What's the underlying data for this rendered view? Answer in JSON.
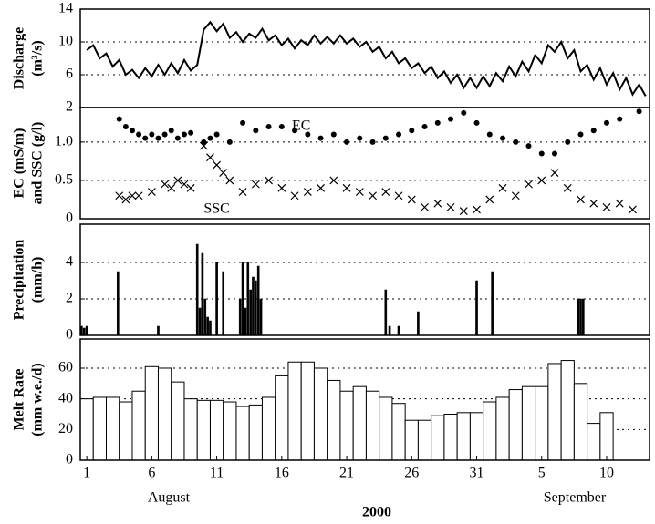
{
  "chart_data": [
    {
      "type": "line",
      "ylabel": [
        "Discharge",
        "(m³/s)"
      ],
      "ylim": [
        2,
        14
      ],
      "yticks": [
        2,
        6,
        10,
        14
      ],
      "xlim": [
        0.5,
        44.3
      ],
      "color": "#000",
      "series": [
        {
          "name": "Discharge",
          "x": [
            1,
            1.5,
            2,
            2.5,
            3,
            3.5,
            4,
            4.5,
            5,
            5.5,
            6,
            6.5,
            7,
            7.5,
            8,
            8.5,
            9,
            9.5,
            10,
            10.5,
            11,
            11.5,
            12,
            12.5,
            13,
            13.5,
            14,
            14.5,
            15,
            15.5,
            16,
            16.5,
            17,
            17.5,
            18,
            18.5,
            19,
            19.5,
            20,
            20.5,
            21,
            21.5,
            22,
            22.5,
            23,
            23.5,
            24,
            24.5,
            25,
            25.5,
            26,
            26.5,
            27,
            27.5,
            28,
            28.5,
            29,
            29.5,
            30,
            30.5,
            31,
            31.5,
            32,
            32.5,
            33,
            33.5,
            34,
            34.5,
            35,
            35.5,
            36,
            36.5,
            37,
            37.5,
            38,
            38.5,
            39,
            39.5,
            40,
            40.5,
            41,
            41.5,
            42,
            42.5,
            43,
            43.5,
            44
          ],
          "values": [
            9.0,
            9.6,
            8.0,
            8.6,
            7.0,
            7.8,
            6.0,
            6.6,
            5.6,
            6.8,
            5.8,
            7.2,
            6.0,
            7.4,
            6.2,
            7.8,
            6.5,
            7.2,
            11.5,
            12.4,
            11.3,
            12.2,
            10.5,
            11.2,
            10.0,
            11.0,
            10.5,
            11.6,
            10.2,
            10.8,
            9.6,
            10.4,
            9.2,
            10.2,
            9.6,
            10.8,
            9.8,
            10.6,
            9.8,
            10.8,
            9.8,
            10.4,
            9.4,
            10.0,
            8.8,
            9.4,
            8.0,
            8.8,
            7.4,
            8.0,
            6.8,
            7.4,
            6.2,
            7.0,
            5.6,
            6.4,
            5.0,
            6.0,
            4.4,
            5.6,
            4.4,
            5.8,
            4.6,
            6.2,
            5.2,
            7.0,
            5.8,
            7.6,
            6.4,
            8.4,
            7.4,
            9.6,
            8.8,
            10.0,
            8.0,
            9.0,
            6.4,
            7.2,
            5.4,
            6.8,
            4.8,
            6.2,
            4.2,
            5.6,
            3.6,
            4.8,
            3.4
          ]
        }
      ]
    },
    {
      "type": "scatter",
      "ylabel": [
        "EC (mS/m)",
        "and SSC (g/l)"
      ],
      "ylim": [
        0,
        1.45
      ],
      "yticks": [
        0,
        0.5,
        {
          "value": 1,
          "label": "1.0"
        }
      ],
      "xlim": [
        0.5,
        44.3
      ],
      "series": [
        {
          "name": "EC",
          "marker": "circle",
          "color": "#000",
          "x": [
            3.5,
            4,
            4.5,
            5,
            5.5,
            6,
            6.5,
            7,
            7.5,
            8,
            8.5,
            9,
            10,
            10.5,
            11,
            12,
            13,
            14,
            15,
            16,
            17,
            18,
            19,
            20,
            21,
            22,
            23,
            24,
            25,
            26,
            27,
            28,
            29,
            30,
            31,
            32,
            33,
            34,
            35,
            36,
            37,
            38,
            39,
            40,
            41,
            42,
            43.5
          ],
          "values": [
            1.3,
            1.2,
            1.15,
            1.1,
            1.05,
            1.1,
            1.05,
            1.1,
            1.15,
            1.05,
            1.1,
            1.12,
            1.0,
            1.05,
            1.1,
            1.0,
            1.25,
            1.15,
            1.2,
            1.2,
            1.15,
            1.1,
            1.05,
            1.1,
            1.0,
            1.05,
            1.0,
            1.05,
            1.1,
            1.15,
            1.2,
            1.25,
            1.3,
            1.38,
            1.25,
            1.1,
            1.05,
            1.0,
            0.95,
            0.85,
            0.85,
            1.0,
            1.1,
            1.15,
            1.25,
            1.3,
            1.4
          ]
        },
        {
          "name": "SSC",
          "marker": "x",
          "color": "#000",
          "x": [
            3.5,
            4,
            4.5,
            5,
            6,
            7,
            7.5,
            8,
            8.5,
            9,
            10,
            10.5,
            11,
            11.5,
            12,
            13,
            14,
            15,
            16,
            17,
            18,
            19,
            20,
            21,
            22,
            23,
            24,
            25,
            26,
            27,
            28,
            29,
            30,
            31,
            32,
            33,
            34,
            35,
            36,
            37,
            38,
            39,
            40,
            41,
            42,
            43
          ],
          "values": [
            0.3,
            0.25,
            0.3,
            0.3,
            0.35,
            0.45,
            0.4,
            0.5,
            0.45,
            0.4,
            0.95,
            0.8,
            0.7,
            0.6,
            0.5,
            0.35,
            0.45,
            0.5,
            0.4,
            0.3,
            0.35,
            0.4,
            0.5,
            0.4,
            0.35,
            0.3,
            0.35,
            0.3,
            0.25,
            0.15,
            0.2,
            0.15,
            0.1,
            0.12,
            0.25,
            0.4,
            0.3,
            0.45,
            0.5,
            0.6,
            0.4,
            0.25,
            0.2,
            0.15,
            0.2,
            0.12
          ]
        }
      ]
    },
    {
      "type": "bar",
      "ylabel": [
        "Precipitation",
        "(mm/h)"
      ],
      "ylim": [
        0,
        6.1
      ],
      "yticks": [
        0,
        2,
        4
      ],
      "xlim": [
        0.5,
        44.3
      ],
      "color": "#000",
      "bar_width_days": 0.15,
      "x": [
        0.6,
        0.8,
        1.0,
        3.4,
        6.5,
        9.5,
        9.7,
        9.9,
        10.1,
        10.3,
        10.5,
        11.0,
        11.5,
        12.8,
        13.0,
        13.2,
        13.4,
        13.6,
        13.8,
        14.0,
        14.2,
        14.4,
        24.0,
        24.3,
        25.0,
        26.5,
        31.0,
        32.2,
        38.8,
        39.0,
        39.2
      ],
      "values": [
        0.5,
        0.4,
        0.5,
        3.5,
        0.5,
        5.0,
        1.5,
        4.5,
        2.0,
        1.0,
        0.8,
        4.0,
        3.5,
        2.0,
        4.0,
        1.5,
        4.0,
        2.5,
        3.2,
        3.0,
        3.8,
        2.0,
        2.5,
        0.5,
        0.5,
        1.3,
        3.0,
        3.5,
        2.0,
        2.0,
        2.0
      ]
    },
    {
      "type": "bar",
      "ylabel": [
        "Melt Rate",
        "(mm w.e./d)"
      ],
      "ylim": [
        0,
        79
      ],
      "yticks": [
        0,
        20,
        40,
        60
      ],
      "xlim": [
        0.5,
        44.3
      ],
      "color": "#fff",
      "bar_width_days": 1,
      "x": [
        1,
        2,
        3,
        4,
        5,
        6,
        7,
        8,
        9,
        10,
        11,
        12,
        13,
        14,
        15,
        16,
        17,
        18,
        19,
        20,
        21,
        22,
        23,
        24,
        25,
        26,
        27,
        28,
        29,
        30,
        31,
        32,
        33,
        34,
        35,
        36,
        37,
        38,
        39,
        40,
        41
      ],
      "values": [
        40,
        41,
        41,
        38,
        45,
        61,
        60,
        51,
        40,
        39,
        39,
        38,
        35,
        36,
        41,
        55,
        64,
        64,
        60,
        52,
        45,
        48,
        45,
        41,
        37,
        26,
        26,
        29,
        30,
        31,
        31,
        38,
        41,
        46,
        48,
        48,
        63,
        65,
        50,
        24,
        31
      ],
      "xticks": [
        1,
        6,
        11,
        16,
        21,
        26,
        31,
        {
          "value": 36,
          "label": "5"
        },
        {
          "value": 41,
          "label": "10"
        }
      ],
      "months": [
        "August",
        "September"
      ],
      "xlabel": "2000"
    }
  ]
}
